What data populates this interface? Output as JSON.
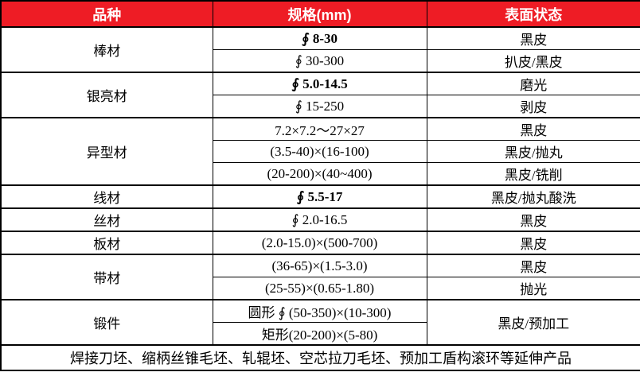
{
  "colors": {
    "header_bg": "#ee1c25",
    "header_text": "#ffffff",
    "body_text": "#000000",
    "border": "#000000",
    "background": "#ffffff"
  },
  "header": {
    "columns": [
      "品种",
      "规格(mm)",
      "表面状态"
    ]
  },
  "groups": [
    {
      "variety": "棒材",
      "rows": [
        {
          "spec": "∮ 8-30",
          "surface": "黑皮"
        },
        {
          "spec": "∮ 30-300",
          "surface": "扒皮/黑皮"
        }
      ]
    },
    {
      "variety": "银亮材",
      "rows": [
        {
          "spec": "∮ 5.0-14.5",
          "surface": "磨光"
        },
        {
          "spec": "∮ 15-250",
          "surface": "剥皮"
        }
      ]
    },
    {
      "variety": "异型材",
      "rows": [
        {
          "spec": "7.2×7.2～27×27",
          "surface": "黑皮"
        },
        {
          "spec": "(3.5-40)×(16-100)",
          "surface": "黑皮/抛丸"
        },
        {
          "spec": "(20-200)×(40~400)",
          "surface": "黑皮/铣削"
        }
      ]
    },
    {
      "variety": "线材",
      "rows": [
        {
          "spec": "∮ 5.5-17",
          "surface": "黑皮/抛丸酸洗"
        }
      ]
    },
    {
      "variety": "丝材",
      "rows": [
        {
          "spec": "∮ 2.0-16.5",
          "surface": "黑皮"
        }
      ]
    },
    {
      "variety": "板材",
      "rows": [
        {
          "spec": "(2.0-15.0)×(500-700)",
          "surface": "黑皮"
        }
      ]
    },
    {
      "variety": "带材",
      "rows": [
        {
          "spec": "(36-65)×(1.5-3.0)",
          "surface": "黑皮"
        },
        {
          "spec": "(25-55)×(0.65-1.80)",
          "surface": "抛光"
        }
      ]
    },
    {
      "variety": "锻件",
      "surface": "黑皮/预加工",
      "rows": [
        {
          "spec": "圆形 ∮ (50-350)×(10-300)"
        },
        {
          "spec": "矩形(20-200)×(5-80)"
        }
      ]
    }
  ],
  "footer": {
    "text": "焊接刀坯、缩柄丝锥毛坯、轧辊坯、空芯拉刀毛坯、预加工盾构滚环等延伸产品"
  }
}
